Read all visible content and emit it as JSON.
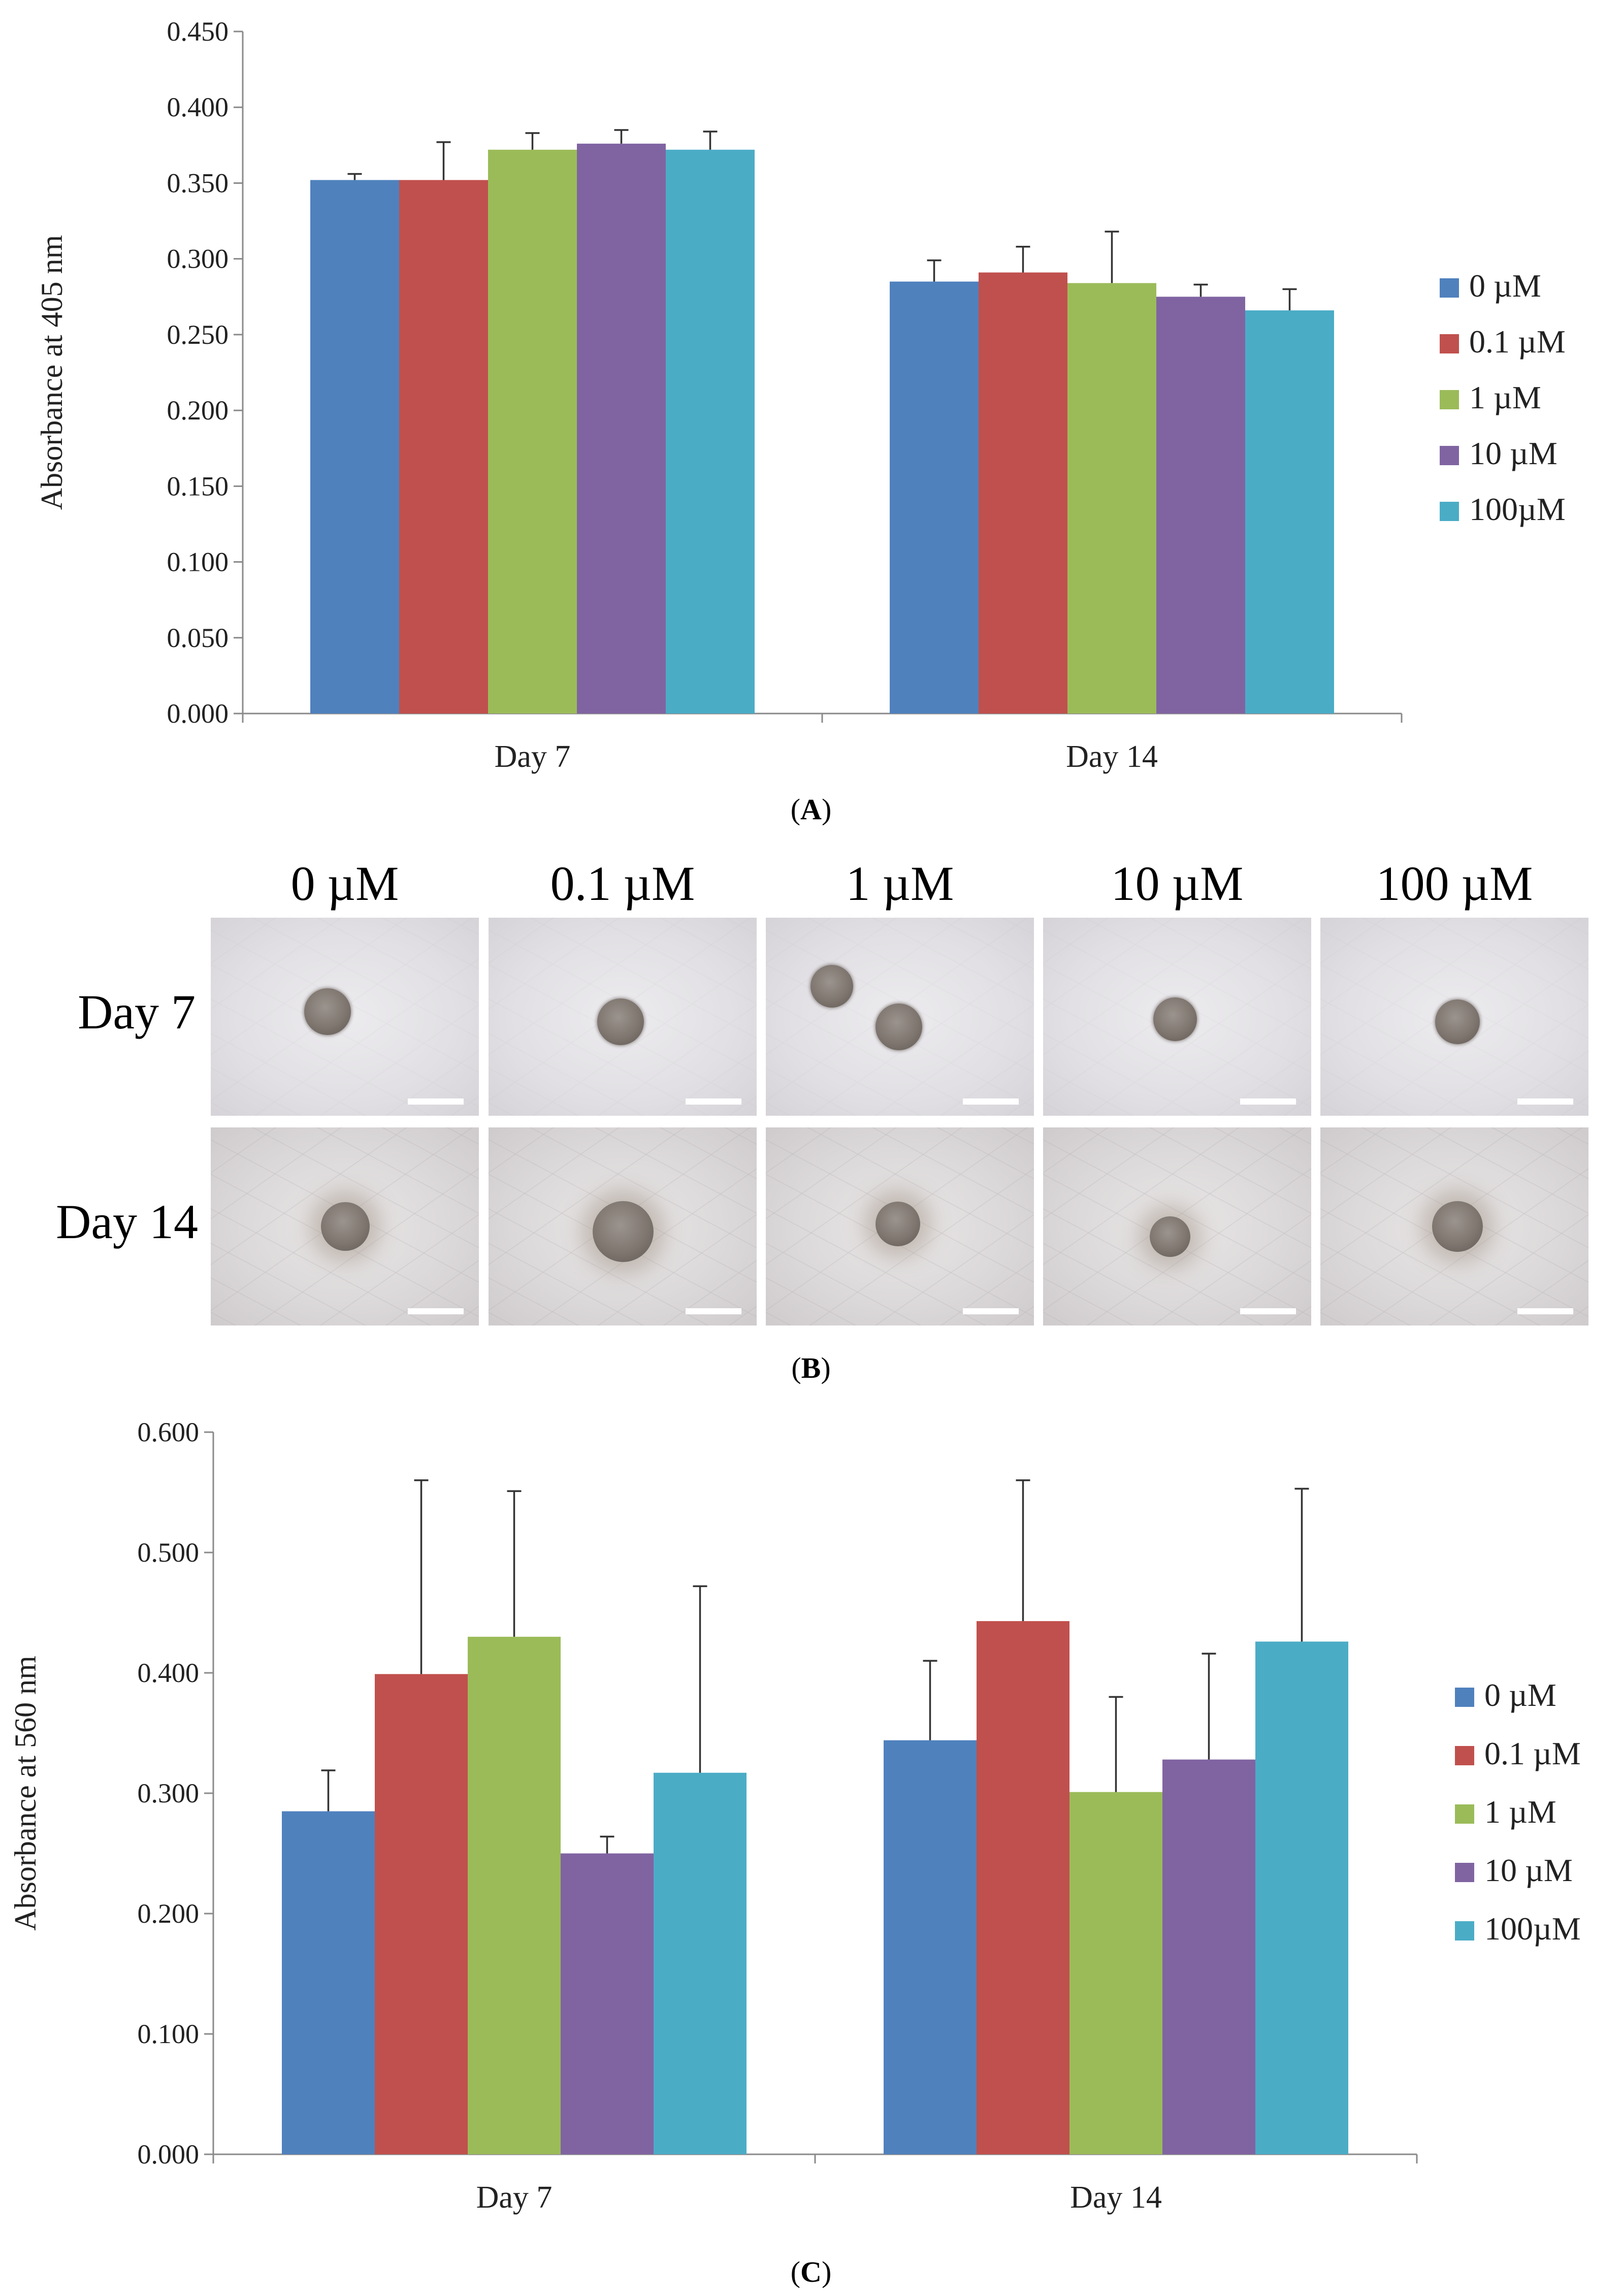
{
  "chart_data": [
    {
      "panel": "A",
      "type": "bar",
      "categories": [
        "Day 7",
        "Day 14"
      ],
      "series": [
        {
          "name": "0 µM",
          "color": "#4f81bd",
          "values": [
            0.352,
            0.285
          ],
          "errors": [
            0.004,
            0.014
          ]
        },
        {
          "name": "0.1 µM",
          "color": "#c0504d",
          "values": [
            0.352,
            0.291
          ],
          "errors": [
            0.025,
            0.017
          ]
        },
        {
          "name": "1 µM",
          "color": "#9bbb59",
          "values": [
            0.372,
            0.284
          ],
          "errors": [
            0.011,
            0.034
          ]
        },
        {
          "name": "10 µM",
          "color": "#8064a2",
          "values": [
            0.376,
            0.275
          ],
          "errors": [
            0.009,
            0.008
          ]
        },
        {
          "name": "100µM",
          "color": "#4bacc6",
          "values": [
            0.372,
            0.266
          ],
          "errors": [
            0.012,
            0.014
          ]
        }
      ],
      "ylabel": "Absorbance at 405 nm",
      "ylim": [
        0,
        0.45
      ],
      "yticks": [
        "0.000",
        "0.050",
        "0.100",
        "0.150",
        "0.200",
        "0.250",
        "0.300",
        "0.350",
        "0.400",
        "0.450"
      ],
      "grid": false,
      "legend": "right"
    },
    {
      "panel": "C",
      "type": "bar",
      "categories": [
        "Day 7",
        "Day 14"
      ],
      "series": [
        {
          "name": "0 µM",
          "color": "#4f81bd",
          "values": [
            0.285,
            0.344
          ],
          "errors": [
            0.034,
            0.066
          ]
        },
        {
          "name": "0.1 µM",
          "color": "#c0504d",
          "values": [
            0.399,
            0.443
          ],
          "errors": [
            0.161,
            0.117
          ]
        },
        {
          "name": "1 µM",
          "color": "#9bbb59",
          "values": [
            0.43,
            0.301
          ],
          "errors": [
            0.121,
            0.079
          ]
        },
        {
          "name": "10 µM",
          "color": "#8064a2",
          "values": [
            0.25,
            0.328
          ],
          "errors": [
            0.014,
            0.088
          ]
        },
        {
          "name": "100µM",
          "color": "#4bacc6",
          "values": [
            0.317,
            0.426
          ],
          "errors": [
            0.155,
            0.127
          ]
        }
      ],
      "ylabel": "Absorbance at 560 nm",
      "ylim": [
        0,
        0.6
      ],
      "yticks": [
        "0.000",
        "0.100",
        "0.200",
        "0.300",
        "0.400",
        "0.500",
        "0.600"
      ],
      "grid": false,
      "legend": "right"
    }
  ],
  "panel_labels": {
    "A": "A",
    "B": "B",
    "C": "C"
  },
  "micrographs": {
    "columns": [
      "0 µM",
      "0.1 µM",
      "1 µM",
      "10 µM",
      "100 µM"
    ],
    "rows": [
      "Day 7",
      "Day 14"
    ]
  }
}
